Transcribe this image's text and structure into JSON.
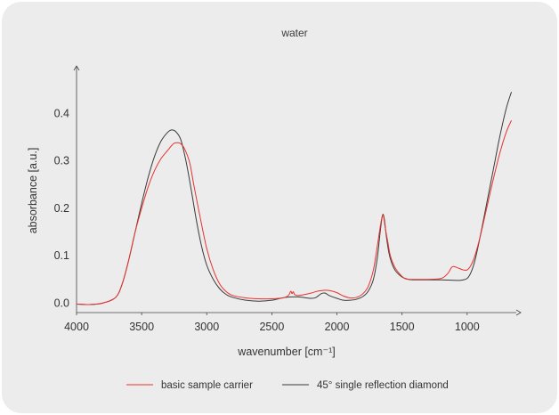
{
  "chart_data": {
    "type": "line",
    "title": "water",
    "xlabel": "wavenumber [cm⁻¹]",
    "ylabel": "absorbance [a.u.]",
    "xlim": [
      4000,
      650
    ],
    "ylim": [
      -0.02,
      0.5
    ],
    "x_reversed": true,
    "x_ticks": [
      {
        "value": 4000,
        "label": "4000"
      },
      {
        "value": 3500,
        "label": "3500"
      },
      {
        "value": 3000,
        "label": "3000"
      },
      {
        "value": 2500,
        "label": "2500"
      },
      {
        "value": 2000,
        "label": "2000"
      },
      {
        "value": 1500,
        "label": "1500"
      },
      {
        "value": 1000,
        "label": "1000"
      }
    ],
    "y_ticks": [
      {
        "value": 0.0,
        "label": "0.0"
      },
      {
        "value": 0.1,
        "label": "0.1"
      },
      {
        "value": 0.2,
        "label": "0.2"
      },
      {
        "value": 0.3,
        "label": "0.3"
      },
      {
        "value": 0.4,
        "label": "0.4"
      }
    ],
    "grid": false,
    "legend_position": "bottom",
    "series": [
      {
        "name": "basic sample carrier",
        "color": "#e8322e",
        "points": [
          [
            4000,
            -0.002
          ],
          [
            3900,
            -0.003
          ],
          [
            3800,
            0.0
          ],
          [
            3700,
            0.012
          ],
          [
            3650,
            0.04
          ],
          [
            3600,
            0.09
          ],
          [
            3550,
            0.15
          ],
          [
            3500,
            0.2
          ],
          [
            3450,
            0.245
          ],
          [
            3400,
            0.28
          ],
          [
            3350,
            0.305
          ],
          [
            3300,
            0.322
          ],
          [
            3270,
            0.332
          ],
          [
            3250,
            0.337
          ],
          [
            3220,
            0.338
          ],
          [
            3200,
            0.336
          ],
          [
            3170,
            0.325
          ],
          [
            3130,
            0.295
          ],
          [
            3100,
            0.25
          ],
          [
            3050,
            0.18
          ],
          [
            3000,
            0.115
          ],
          [
            2950,
            0.07
          ],
          [
            2900,
            0.04
          ],
          [
            2850,
            0.024
          ],
          [
            2800,
            0.016
          ],
          [
            2700,
            0.011
          ],
          [
            2600,
            0.009
          ],
          [
            2500,
            0.009
          ],
          [
            2450,
            0.01
          ],
          [
            2400,
            0.012
          ],
          [
            2370,
            0.017
          ],
          [
            2355,
            0.025
          ],
          [
            2345,
            0.02
          ],
          [
            2335,
            0.024
          ],
          [
            2325,
            0.018
          ],
          [
            2300,
            0.016
          ],
          [
            2250,
            0.018
          ],
          [
            2200,
            0.021
          ],
          [
            2150,
            0.025
          ],
          [
            2100,
            0.027
          ],
          [
            2050,
            0.026
          ],
          [
            2000,
            0.022
          ],
          [
            1950,
            0.015
          ],
          [
            1900,
            0.011
          ],
          [
            1850,
            0.012
          ],
          [
            1800,
            0.02
          ],
          [
            1760,
            0.035
          ],
          [
            1720,
            0.07
          ],
          [
            1690,
            0.12
          ],
          [
            1665,
            0.165
          ],
          [
            1650,
            0.185
          ],
          [
            1640,
            0.18
          ],
          [
            1630,
            0.16
          ],
          [
            1610,
            0.13
          ],
          [
            1590,
            0.1
          ],
          [
            1560,
            0.078
          ],
          [
            1520,
            0.062
          ],
          [
            1480,
            0.052
          ],
          [
            1440,
            0.05
          ],
          [
            1400,
            0.05
          ],
          [
            1300,
            0.05
          ],
          [
            1200,
            0.052
          ],
          [
            1150,
            0.062
          ],
          [
            1120,
            0.075
          ],
          [
            1100,
            0.077
          ],
          [
            1070,
            0.074
          ],
          [
            1030,
            0.07
          ],
          [
            1000,
            0.07
          ],
          [
            970,
            0.08
          ],
          [
            940,
            0.1
          ],
          [
            900,
            0.14
          ],
          [
            850,
            0.2
          ],
          [
            800,
            0.26
          ],
          [
            750,
            0.315
          ],
          [
            700,
            0.36
          ],
          [
            660,
            0.385
          ]
        ]
      },
      {
        "name": "45° single reflection diamond",
        "color": "#3a3a3a",
        "points": [
          [
            4000,
            -0.002
          ],
          [
            3900,
            -0.003
          ],
          [
            3800,
            0.0
          ],
          [
            3700,
            0.012
          ],
          [
            3650,
            0.04
          ],
          [
            3600,
            0.09
          ],
          [
            3550,
            0.15
          ],
          [
            3500,
            0.21
          ],
          [
            3450,
            0.265
          ],
          [
            3400,
            0.31
          ],
          [
            3350,
            0.342
          ],
          [
            3300,
            0.36
          ],
          [
            3270,
            0.365
          ],
          [
            3240,
            0.362
          ],
          [
            3200,
            0.345
          ],
          [
            3160,
            0.3
          ],
          [
            3120,
            0.24
          ],
          [
            3080,
            0.175
          ],
          [
            3040,
            0.12
          ],
          [
            3000,
            0.08
          ],
          [
            2950,
            0.05
          ],
          [
            2900,
            0.03
          ],
          [
            2850,
            0.018
          ],
          [
            2800,
            0.012
          ],
          [
            2700,
            0.006
          ],
          [
            2600,
            0.004
          ],
          [
            2500,
            0.006
          ],
          [
            2400,
            0.012
          ],
          [
            2300,
            0.013
          ],
          [
            2200,
            0.01
          ],
          [
            2160,
            0.012
          ],
          [
            2120,
            0.02
          ],
          [
            2090,
            0.021
          ],
          [
            2060,
            0.016
          ],
          [
            2000,
            0.01
          ],
          [
            1950,
            0.006
          ],
          [
            1900,
            0.006
          ],
          [
            1850,
            0.008
          ],
          [
            1800,
            0.014
          ],
          [
            1760,
            0.025
          ],
          [
            1720,
            0.05
          ],
          [
            1690,
            0.095
          ],
          [
            1670,
            0.145
          ],
          [
            1655,
            0.178
          ],
          [
            1645,
            0.187
          ],
          [
            1635,
            0.175
          ],
          [
            1620,
            0.14
          ],
          [
            1600,
            0.105
          ],
          [
            1580,
            0.085
          ],
          [
            1550,
            0.068
          ],
          [
            1500,
            0.055
          ],
          [
            1450,
            0.05
          ],
          [
            1400,
            0.049
          ],
          [
            1300,
            0.049
          ],
          [
            1200,
            0.049
          ],
          [
            1100,
            0.048
          ],
          [
            1050,
            0.048
          ],
          [
            1000,
            0.052
          ],
          [
            970,
            0.065
          ],
          [
            940,
            0.09
          ],
          [
            900,
            0.14
          ],
          [
            850,
            0.21
          ],
          [
            800,
            0.28
          ],
          [
            750,
            0.35
          ],
          [
            700,
            0.41
          ],
          [
            660,
            0.445
          ]
        ]
      }
    ]
  }
}
